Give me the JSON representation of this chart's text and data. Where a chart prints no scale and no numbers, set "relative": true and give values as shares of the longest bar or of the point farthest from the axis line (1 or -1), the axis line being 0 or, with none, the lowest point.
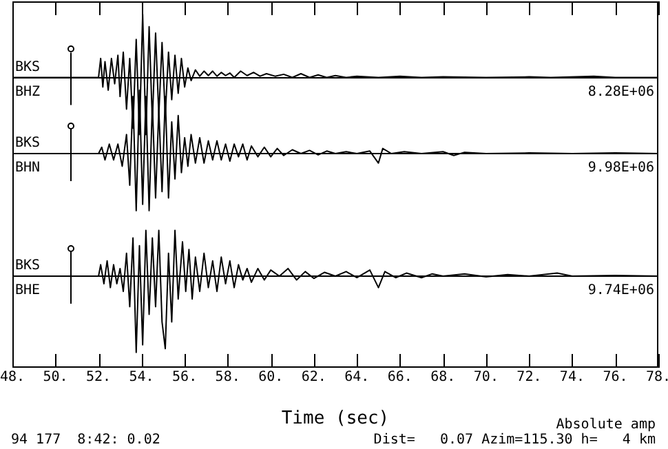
{
  "chart_data": [
    {
      "type": "line",
      "relative": true,
      "annotations": [
        "BKS",
        "BHZ",
        "8.28E+06"
      ],
      "xlim": [
        48,
        78
      ],
      "tick_labels": false,
      "grid": false,
      "legend": false,
      "marker": "none",
      "ref_lines": [
        {
          "axis": "x",
          "value": 50.7
        }
      ],
      "x": [
        48,
        52.0,
        52.1,
        52.2,
        52.3,
        52.45,
        52.6,
        52.75,
        52.9,
        53.0,
        53.15,
        53.3,
        53.45,
        53.6,
        53.75,
        53.9,
        54.05,
        54.2,
        54.35,
        54.5,
        54.65,
        54.8,
        54.95,
        55.1,
        55.25,
        55.4,
        55.55,
        55.7,
        55.85,
        56.0,
        56.15,
        56.3,
        56.5,
        56.7,
        56.9,
        57.1,
        57.3,
        57.5,
        57.7,
        57.9,
        58.1,
        58.3,
        58.6,
        58.9,
        59.2,
        59.5,
        59.8,
        60.2,
        60.6,
        61.0,
        61.4,
        61.8,
        62.2,
        62.6,
        63.0,
        63.5,
        64.0,
        65,
        66,
        67,
        68,
        70,
        72,
        73,
        75,
        76,
        78
      ],
      "series": [
        {
          "color": "#000000",
          "values": [
            0,
            0,
            0.3,
            -0.15,
            0.25,
            -0.2,
            0.3,
            -0.1,
            0.35,
            -0.3,
            0.4,
            -0.5,
            0.3,
            -0.8,
            0.6,
            -0.9,
            1.0,
            -0.9,
            0.8,
            -0.7,
            0.7,
            -0.6,
            0.55,
            -0.6,
            0.4,
            -0.35,
            0.35,
            -0.25,
            0.3,
            -0.15,
            0.15,
            -0.05,
            0.12,
            0.02,
            0.1,
            0.03,
            0.1,
            0.02,
            0.08,
            0.03,
            0.07,
            0.0,
            0.1,
            0.03,
            0.08,
            0.02,
            0.06,
            0.02,
            0.05,
            0.0,
            0.06,
            0.0,
            0.04,
            0.0,
            0.03,
            0.0,
            0.02,
            0,
            0.02,
            0,
            0.01,
            0,
            0.01,
            0,
            0.02,
            0,
            0
          ]
        }
      ]
    },
    {
      "type": "line",
      "relative": true,
      "annotations": [
        "BKS",
        "BHN",
        "9.98E+06"
      ],
      "xlim": [
        48,
        78
      ],
      "tick_labels": false,
      "grid": false,
      "legend": false,
      "marker": "none",
      "ref_lines": [
        {
          "axis": "x",
          "value": 50.7
        }
      ],
      "x": [
        48,
        52.0,
        52.15,
        52.3,
        52.5,
        52.7,
        52.9,
        53.1,
        53.3,
        53.45,
        53.6,
        53.75,
        53.9,
        54.05,
        54.2,
        54.35,
        54.5,
        54.65,
        54.8,
        54.95,
        55.1,
        55.25,
        55.4,
        55.55,
        55.7,
        55.85,
        56.0,
        56.15,
        56.3,
        56.5,
        56.7,
        56.9,
        57.1,
        57.3,
        57.5,
        57.7,
        57.9,
        58.1,
        58.3,
        58.5,
        58.7,
        58.9,
        59.1,
        59.4,
        59.7,
        60.0,
        60.3,
        60.6,
        61.0,
        61.4,
        61.8,
        62.2,
        62.6,
        63.0,
        63.5,
        64.0,
        64.6,
        65.0,
        65.2,
        65.6,
        66.2,
        67,
        68,
        68.5,
        69,
        70,
        72,
        74,
        76,
        78
      ],
      "series": [
        {
          "color": "#000000",
          "values": [
            0,
            0,
            0.1,
            -0.1,
            0.15,
            -0.1,
            0.15,
            -0.2,
            0.3,
            -0.5,
            0.9,
            -0.9,
            1.0,
            -0.8,
            0.9,
            -0.9,
            0.8,
            -0.7,
            0.7,
            -0.6,
            0.9,
            -0.7,
            0.5,
            -0.4,
            0.6,
            -0.3,
            0.25,
            -0.2,
            0.3,
            -0.15,
            0.25,
            -0.15,
            0.2,
            -0.1,
            0.2,
            -0.1,
            0.15,
            -0.12,
            0.15,
            -0.05,
            0.15,
            -0.1,
            0.12,
            -0.05,
            0.1,
            -0.05,
            0.08,
            -0.03,
            0.06,
            0.0,
            0.05,
            -0.02,
            0.04,
            0.0,
            0.03,
            0.0,
            0.04,
            -0.15,
            0.08,
            0.0,
            0.03,
            0.0,
            0.03,
            -0.03,
            0.02,
            0,
            0.01,
            0,
            0.01,
            0
          ]
        }
      ]
    },
    {
      "type": "line",
      "relative": true,
      "annotations": [
        "BKS",
        "BHE",
        "9.74E+06",
        "94 177  8:42: 0.02",
        "Absolute amp",
        "Dist=   0.07 Azim=115.30 h=   4 km"
      ],
      "xlabel": "Time (sec)",
      "xlim": [
        48,
        78
      ],
      "xticks": [
        {
          "value": 48,
          "label": "48."
        },
        {
          "value": 50,
          "label": "50."
        },
        {
          "value": 52,
          "label": "52."
        },
        {
          "value": 54,
          "label": "54."
        },
        {
          "value": 56,
          "label": "56."
        },
        {
          "value": 58,
          "label": "58."
        },
        {
          "value": 60,
          "label": "60."
        },
        {
          "value": 62,
          "label": "62."
        },
        {
          "value": 64,
          "label": "64."
        },
        {
          "value": 66,
          "label": "66."
        },
        {
          "value": 68,
          "label": "68."
        },
        {
          "value": 70,
          "label": "70."
        },
        {
          "value": 72,
          "label": "72."
        },
        {
          "value": 74,
          "label": "74."
        },
        {
          "value": 76,
          "label": "76."
        },
        {
          "value": 78,
          "label": "78."
        }
      ],
      "tick_labels": "x",
      "grid": false,
      "legend": false,
      "marker": "none",
      "ref_lines": [
        {
          "axis": "x",
          "value": 50.7
        }
      ],
      "x": [
        48,
        52.0,
        52.1,
        52.25,
        52.4,
        52.55,
        52.7,
        52.85,
        53.0,
        53.15,
        53.3,
        53.45,
        53.6,
        53.75,
        53.9,
        54.05,
        54.2,
        54.35,
        54.5,
        54.65,
        54.8,
        54.95,
        55.1,
        55.25,
        55.4,
        55.55,
        55.7,
        55.9,
        56.05,
        56.2,
        56.35,
        56.5,
        56.7,
        56.9,
        57.1,
        57.3,
        57.5,
        57.7,
        57.9,
        58.1,
        58.3,
        58.5,
        58.7,
        58.9,
        59.1,
        59.4,
        59.7,
        60.0,
        60.4,
        60.8,
        61.2,
        61.6,
        62.0,
        62.5,
        63,
        63.5,
        64,
        64.6,
        65.0,
        65.3,
        65.8,
        66.3,
        67,
        67.5,
        68,
        69,
        70,
        71,
        72,
        73.3,
        74,
        76,
        78
      ],
      "series": [
        {
          "color": "#000000",
          "values": [
            0,
            0,
            0.15,
            -0.1,
            0.2,
            -0.15,
            0.15,
            -0.1,
            0.1,
            -0.2,
            0.3,
            -0.4,
            0.5,
            -1.0,
            0.4,
            -0.9,
            0.6,
            -0.5,
            0.5,
            -0.4,
            0.6,
            -0.6,
            -0.95,
            0.3,
            -0.6,
            0.6,
            -0.3,
            0.45,
            -0.2,
            0.35,
            -0.3,
            0.25,
            -0.2,
            0.3,
            -0.15,
            0.2,
            -0.2,
            0.25,
            -0.1,
            0.2,
            -0.15,
            0.15,
            -0.05,
            0.1,
            -0.08,
            0.1,
            -0.05,
            0.08,
            0.0,
            0.1,
            -0.05,
            0.06,
            -0.03,
            0.05,
            0,
            0.06,
            -0.02,
            0.08,
            -0.15,
            0.06,
            -0.02,
            0.04,
            -0.02,
            0.03,
            0,
            0.03,
            -0.01,
            0.02,
            0.0,
            0.04,
            0,
            0.01,
            0
          ]
        }
      ]
    }
  ]
}
